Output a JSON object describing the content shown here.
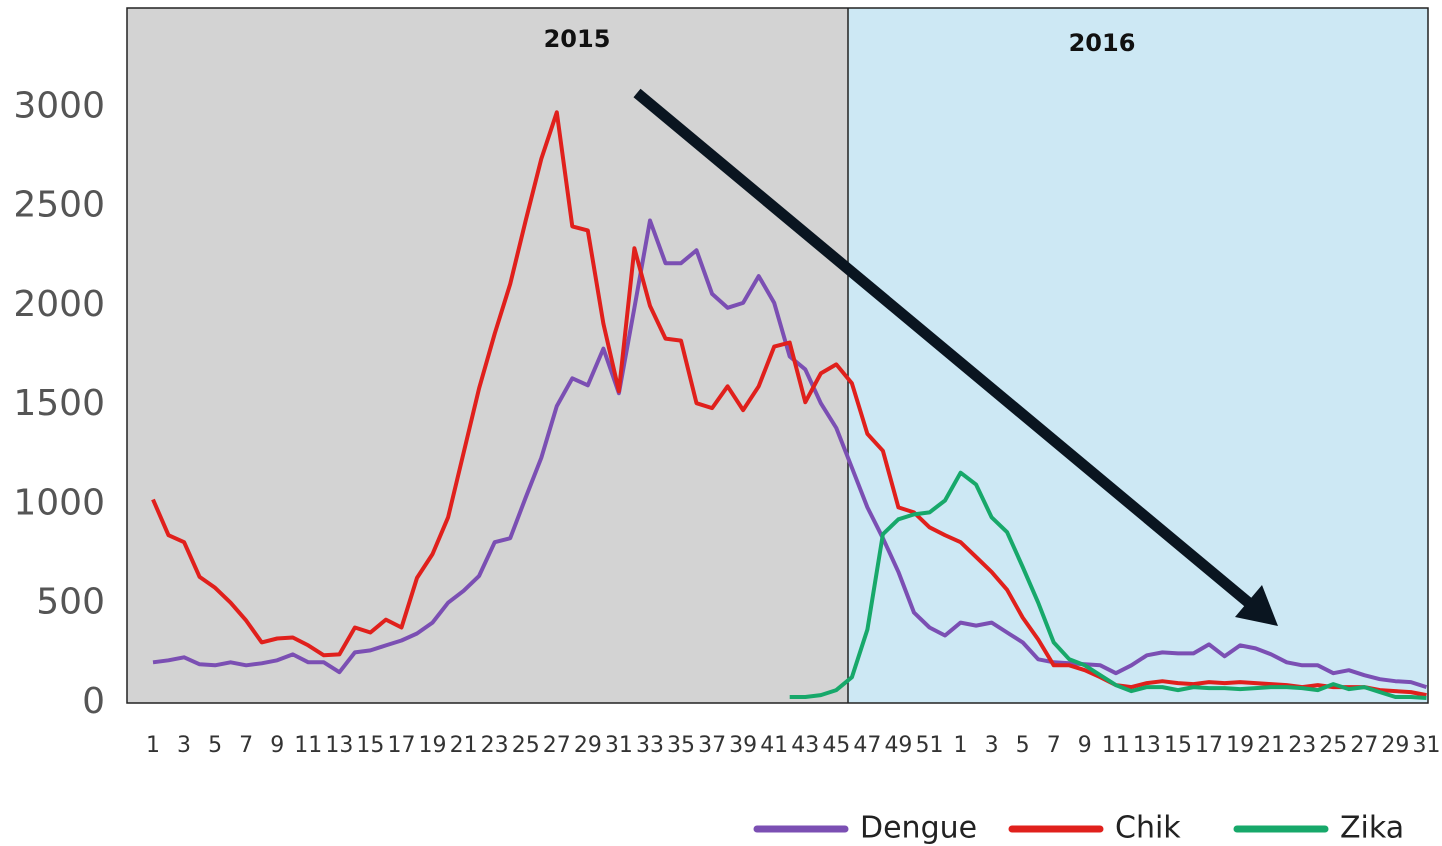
{
  "chart_data": {
    "type": "line",
    "regions": [
      {
        "label": "2015",
        "color": "#d3d3d3"
      },
      {
        "label": "2016",
        "color": "#cde8f4"
      }
    ],
    "categories": [
      "1",
      null,
      "3",
      null,
      "5",
      null,
      "7",
      null,
      "9",
      null,
      "11",
      null,
      "13",
      null,
      "15",
      null,
      "17",
      null,
      "19",
      null,
      "21",
      null,
      "23",
      null,
      "25",
      null,
      "27",
      null,
      "29",
      null,
      "31",
      null,
      "33",
      null,
      "35",
      null,
      "37",
      null,
      "39",
      null,
      "41",
      null,
      "43",
      null,
      "45",
      null,
      "47",
      null,
      "49",
      null,
      "51",
      null,
      "1",
      null,
      "3",
      null,
      "5",
      null,
      "7",
      null,
      "9",
      null,
      "11",
      null,
      "13",
      null,
      "15",
      null,
      "17",
      null,
      "19",
      null,
      "21",
      null,
      "23",
      null,
      "25",
      null,
      "27",
      null,
      "29",
      null,
      "31"
    ],
    "series": [
      {
        "name": "Dengue",
        "color": "#7b4fb3",
        "values": [
          205,
          215,
          230,
          195,
          190,
          205,
          190,
          200,
          215,
          245,
          205,
          205,
          155,
          255,
          265,
          290,
          315,
          350,
          405,
          505,
          565,
          640,
          810,
          830,
          1035,
          1235,
          1495,
          1635,
          1600,
          1785,
          1560,
          1990,
          2430,
          2215,
          2215,
          2280,
          2060,
          1990,
          2015,
          2150,
          2015,
          1745,
          1680,
          1510,
          1385,
          1185,
          985,
          830,
          660,
          455,
          380,
          340,
          405,
          390,
          405,
          355,
          305,
          220,
          205,
          200,
          195,
          190,
          150,
          190,
          240,
          255,
          250,
          250,
          295,
          235,
          290,
          275,
          245,
          205,
          190,
          190,
          150,
          165,
          140,
          120,
          110,
          105,
          80
        ]
      },
      {
        "name": "Chik",
        "color": "#e0201c",
        "values": [
          1025,
          845,
          810,
          635,
          580,
          505,
          415,
          305,
          325,
          330,
          290,
          240,
          245,
          380,
          355,
          420,
          380,
          630,
          750,
          935,
          1260,
          1585,
          1860,
          2110,
          2430,
          2740,
          2975,
          2400,
          2380,
          1910,
          1570,
          2290,
          2000,
          1835,
          1825,
          1510,
          1485,
          1595,
          1475,
          1595,
          1795,
          1815,
          1515,
          1660,
          1705,
          1610,
          1355,
          1270,
          985,
          960,
          885,
          845,
          810,
          735,
          660,
          570,
          430,
          320,
          190,
          190,
          165,
          130,
          90,
          80,
          100,
          110,
          100,
          95,
          105,
          100,
          105,
          100,
          95,
          90,
          80,
          90,
          80,
          80,
          80,
          65,
          60,
          55,
          40
        ]
      },
      {
        "name": "Zika",
        "color": "#17a86a",
        "values": [
          null,
          null,
          null,
          null,
          null,
          null,
          null,
          null,
          null,
          null,
          null,
          null,
          null,
          null,
          null,
          null,
          null,
          null,
          null,
          null,
          null,
          null,
          null,
          null,
          null,
          null,
          null,
          null,
          null,
          null,
          null,
          null,
          null,
          null,
          null,
          null,
          null,
          null,
          null,
          null,
          null,
          30,
          30,
          40,
          65,
          130,
          370,
          850,
          925,
          950,
          960,
          1020,
          1160,
          1100,
          935,
          860,
          685,
          505,
          305,
          220,
          190,
          140,
          90,
          60,
          80,
          80,
          65,
          80,
          75,
          75,
          70,
          75,
          80,
          80,
          75,
          65,
          95,
          70,
          80,
          55,
          30,
          30,
          25
        ]
      }
    ],
    "ylim": [
      0,
      3500
    ],
    "yticks": [
      0,
      500,
      1000,
      1500,
      2000,
      2500,
      3000
    ],
    "grid": false
  }
}
